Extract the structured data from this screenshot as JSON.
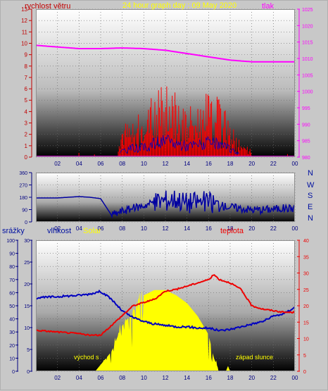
{
  "header": {
    "left_label": "rychlost větru",
    "title": "24 hour graph day : 09 May 2020",
    "right_label": "tlak"
  },
  "panel3": {
    "rain_label": "srážky",
    "humidity_label": "vlhkost",
    "solar_label": "Solar",
    "temp_label": "teplota",
    "sunrise_label": "východ s",
    "sunset_label": "západ slunce"
  },
  "directions": [
    "N",
    "W",
    "S",
    "E",
    "N"
  ],
  "colors": {
    "wind": "#ff0000",
    "pressure": "#ff00ff",
    "direction": "#0000a0",
    "humidity": "#0000c0",
    "temperature": "#ee0000",
    "solar": "#ffff00",
    "title": "#ffff00"
  },
  "chart_data": [
    {
      "type": "line",
      "title": "24 hour graph day : 09 May 2020",
      "xticks": [
        "02",
        "04",
        "06",
        "08",
        "10",
        "12",
        "14",
        "16",
        "18",
        "20",
        "22",
        "00"
      ],
      "y_left": {
        "label": "rychlost větru",
        "ylim": [
          0,
          13
        ],
        "ticks": [
          0,
          1,
          2,
          3,
          4,
          5,
          6,
          7,
          8,
          9,
          10,
          11,
          12,
          13
        ]
      },
      "y_right": {
        "label": "tlak",
        "ylim": [
          980,
          1025
        ],
        "ticks": [
          980,
          985,
          990,
          995,
          1000,
          1005,
          1010,
          1015,
          1020,
          1025
        ]
      },
      "series": [
        {
          "name": "tlak",
          "axis": "right",
          "x": [
            0,
            2,
            4,
            6,
            8,
            10,
            12,
            14,
            16,
            18,
            20,
            22,
            24
          ],
          "values": [
            1014,
            1013.5,
            1013,
            1013,
            1013.2,
            1013,
            1012.5,
            1011.5,
            1010.5,
            1009.5,
            1009,
            1009,
            1009
          ]
        },
        {
          "name": "rychlost větru",
          "axis": "left",
          "x": [
            0,
            2,
            4,
            6,
            7.5,
            8,
            9,
            10,
            11,
            12,
            13,
            14,
            15,
            16,
            17,
            18,
            19,
            20,
            21,
            22,
            23,
            24
          ],
          "values": [
            0,
            0,
            0.1,
            0,
            0.1,
            2,
            3,
            3,
            4.5,
            5,
            4.5,
            3.5,
            4,
            4.5,
            4,
            2.5,
            1,
            0.5,
            0.5,
            0.5,
            0.3,
            0
          ]
        }
      ]
    },
    {
      "type": "line",
      "xticks": [
        "02",
        "04",
        "06",
        "08",
        "10",
        "12",
        "14",
        "16",
        "18",
        "20",
        "22",
        "00"
      ],
      "y_left": {
        "ylim": [
          0,
          360
        ],
        "ticks": [
          0,
          90,
          180,
          270,
          360
        ]
      },
      "series": [
        {
          "name": "direction",
          "x": [
            0,
            2,
            4,
            5,
            6,
            6.5,
            7,
            8,
            9,
            10,
            11,
            12,
            13,
            14,
            15,
            16,
            17,
            18,
            19,
            20,
            21,
            22,
            23,
            24
          ],
          "values": [
            175,
            175,
            185,
            180,
            170,
            110,
            50,
            80,
            100,
            120,
            150,
            160,
            170,
            140,
            150,
            145,
            120,
            110,
            100,
            90,
            90,
            95,
            100,
            100
          ]
        }
      ]
    },
    {
      "type": "line",
      "xticks": [
        "02",
        "04",
        "06",
        "08",
        "10",
        "12",
        "14",
        "16",
        "18",
        "20",
        "22",
        "00"
      ],
      "y_left": {
        "label": "srážky",
        "ylim": [
          0,
          100
        ],
        "ticks": [
          0,
          10,
          20,
          30,
          40,
          50,
          60,
          70,
          80,
          90,
          100
        ]
      },
      "y_left_inner": {
        "label": "vlhkost",
        "ylim": [
          0,
          30
        ],
        "ticks": [
          0,
          5,
          10,
          15,
          20,
          25,
          30
        ]
      },
      "y_right": {
        "label": "teplota",
        "ylim": [
          0,
          40
        ],
        "ticks": [
          0,
          5,
          10,
          15,
          20,
          25,
          30,
          35,
          40
        ]
      },
      "series": [
        {
          "name": "vlhkost",
          "axis": "left",
          "x": [
            0,
            2,
            4,
            5,
            5.5,
            6,
            7,
            8,
            9,
            10,
            11,
            12,
            13,
            14,
            15,
            16,
            17,
            18,
            19,
            20,
            21,
            22,
            23,
            24
          ],
          "values": [
            56,
            57,
            58,
            59,
            60,
            61,
            55,
            46,
            41,
            38,
            36,
            35,
            34,
            34,
            33,
            33,
            31,
            32,
            34,
            36,
            38,
            42,
            44,
            49
          ]
        },
        {
          "name": "teplota",
          "axis": "right",
          "x": [
            0,
            2,
            4,
            5,
            6,
            7,
            8,
            9,
            10,
            11,
            12,
            13,
            14,
            15,
            16,
            16.5,
            17,
            18,
            19,
            20,
            21,
            22,
            23,
            24
          ],
          "values": [
            12.5,
            12,
            11.5,
            11,
            11,
            14,
            17,
            20,
            21,
            22,
            24.5,
            25,
            26,
            27,
            28,
            29.5,
            28,
            27,
            25,
            20,
            19,
            18.5,
            18,
            18
          ]
        },
        {
          "name": "Solar",
          "axis": "left",
          "x": [
            5.5,
            6,
            7,
            8,
            9,
            10,
            11,
            12,
            13,
            14,
            15,
            16,
            16.5,
            17
          ],
          "values": [
            0,
            5,
            15,
            35,
            45,
            58,
            62,
            62,
            58,
            52,
            42,
            28,
            10,
            0
          ]
        }
      ]
    }
  ]
}
